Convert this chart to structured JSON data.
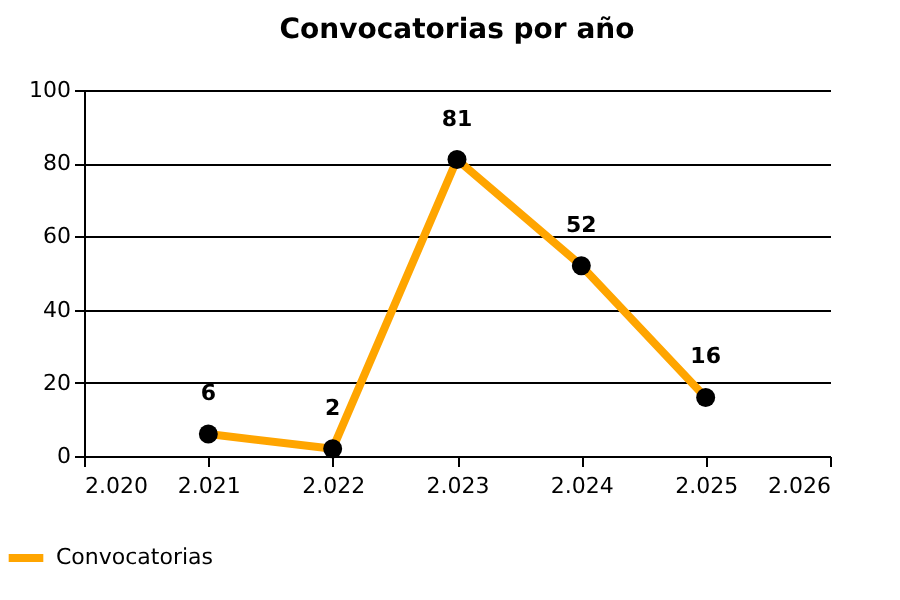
{
  "chart_data": {
    "type": "line",
    "title": "Convocatorias por año",
    "x": [
      2021,
      2022,
      2023,
      2024,
      2025
    ],
    "series": [
      {
        "name": "Convocatorias",
        "color": "#ffa500",
        "values": [
          6,
          2,
          81,
          52,
          16
        ]
      }
    ],
    "xlim": [
      2020,
      2026
    ],
    "xticks": [
      {
        "value": 2020,
        "label": "2.020"
      },
      {
        "value": 2021,
        "label": "2.021"
      },
      {
        "value": 2022,
        "label": "2.022"
      },
      {
        "value": 2023,
        "label": "2.023"
      },
      {
        "value": 2024,
        "label": "2.024"
      },
      {
        "value": 2025,
        "label": "2.025"
      },
      {
        "value": 2026,
        "label": "2.026"
      }
    ],
    "ylim": [
      0,
      100
    ],
    "yticks": [
      0,
      20,
      40,
      60,
      80,
      100
    ],
    "grid": "y",
    "legend": "bottom left",
    "marker": "circle",
    "line_style": "solid",
    "data_labels": true
  }
}
